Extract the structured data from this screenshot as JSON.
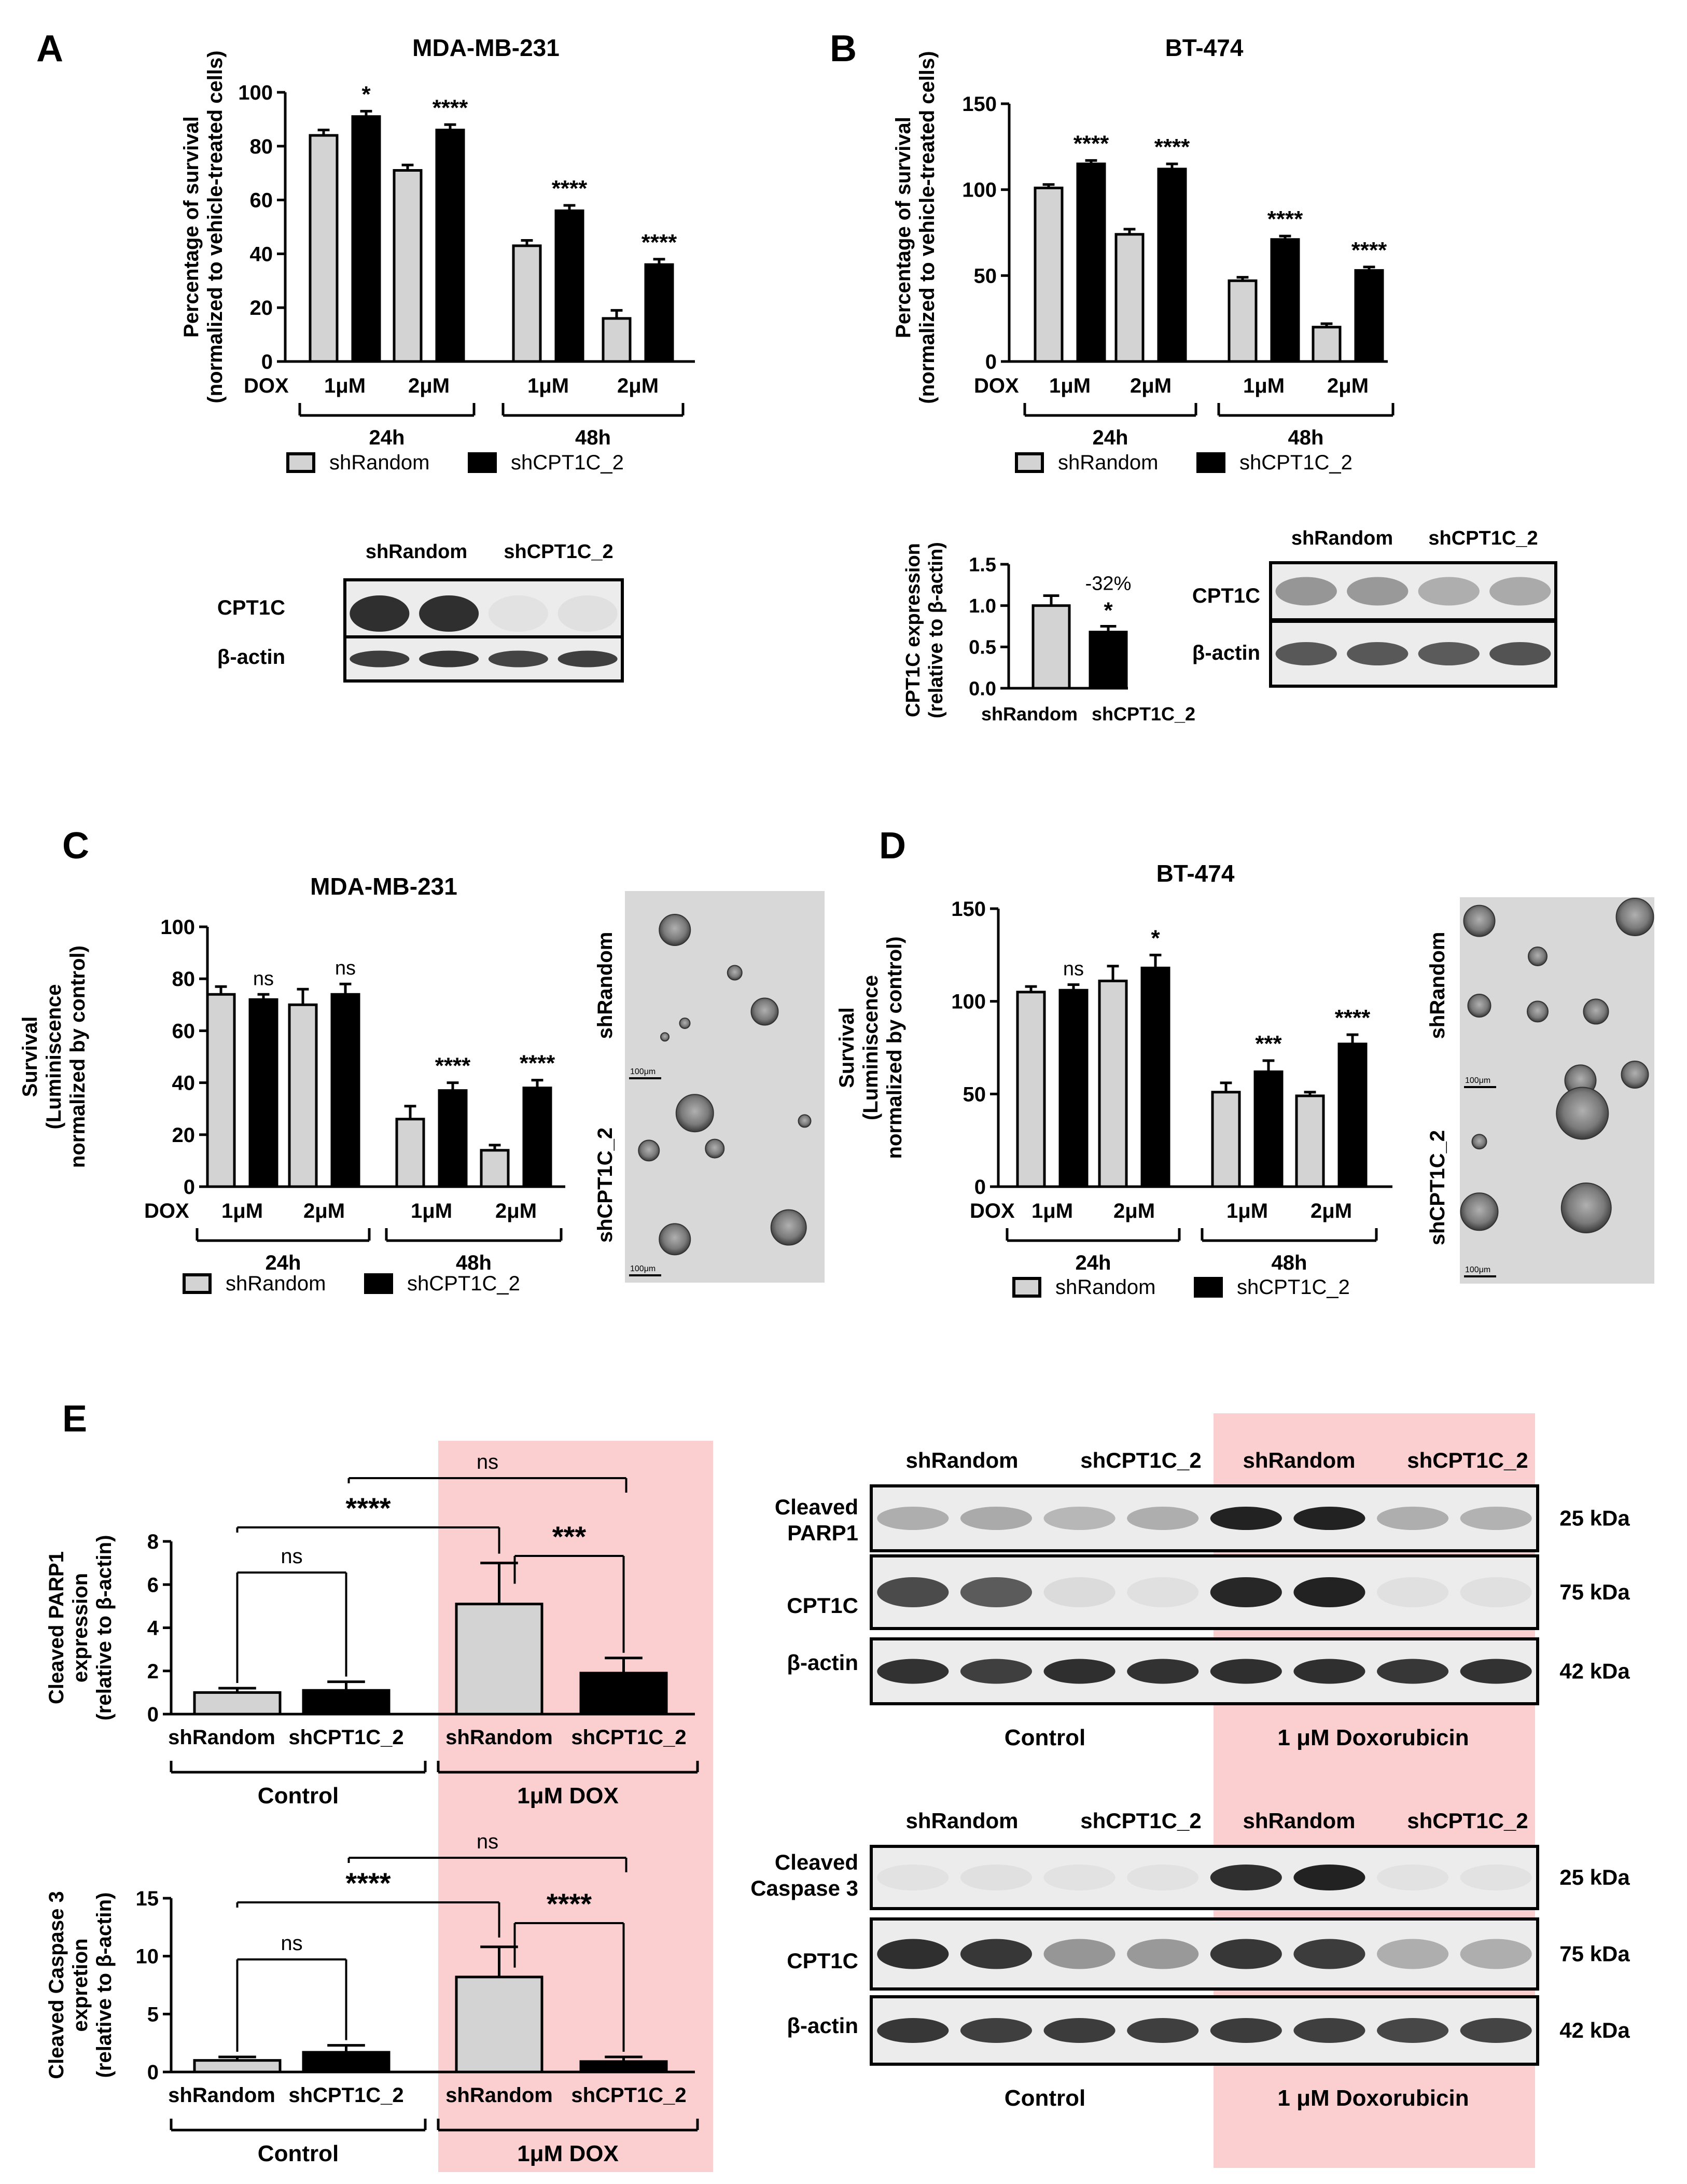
{
  "colors": {
    "shRandom": "#d3d3d3",
    "shCPT1C_2": "#000000",
    "highlight": "#fbcfcf",
    "blot_bg": "#ececec",
    "band": "#1e1e1e"
  },
  "legend": {
    "shRandom": "shRandom",
    "shCPT1C_2": "shCPT1C_2"
  },
  "panels": {
    "A": {
      "letter": "A",
      "title": "MDA-MB-231"
    },
    "B": {
      "letter": "B",
      "title": "BT-474"
    },
    "C": {
      "letter": "C",
      "title": "MDA-MB-231"
    },
    "D": {
      "letter": "D",
      "title": "BT-474"
    },
    "E": {
      "letter": "E"
    }
  },
  "dose_axis": {
    "dox": "DOX",
    "doses": [
      "1μM",
      "2μM",
      "1μM",
      "2μM"
    ],
    "times": [
      "24h",
      "48h"
    ]
  },
  "ylabels": {
    "survival": [
      "Percentage of survival",
      "(normalized to vehicle-treated cells)"
    ],
    "luminescence": [
      "Survival",
      "(Luminiscence",
      "normalized by control)"
    ],
    "cpt1c_expr": [
      "CPT1C expression",
      "(relative to β-actin)"
    ],
    "parp1_expr": [
      "Cleaved PARP1",
      "expression",
      "(relative to β-actin)"
    ],
    "casp3_expr": [
      "Cleaved Caspase 3",
      "expretion",
      "(relative to β-actin)"
    ]
  },
  "micrographs": {
    "top_label": "shRandom",
    "bottom_label": "shCPT1C_2",
    "scale_bar": "100μm"
  },
  "blots": {
    "A": {
      "headers": [
        "shRandom",
        "shCPT1C_2"
      ],
      "rows": [
        "CPT1C",
        "β-actin"
      ]
    },
    "B": {
      "headers": [
        "shRandom",
        "shCPT1C_2"
      ],
      "rows": [
        "CPT1C",
        "β-actin"
      ]
    },
    "E_parp": {
      "headers": [
        "shRandom",
        "shCPT1C_2",
        "shRandom",
        "shCPT1C_2"
      ],
      "rows": [
        "Cleaved\nPARP1",
        "CPT1C",
        "β-actin"
      ],
      "kda": [
        "25 kDa",
        "75 kDa",
        "42 kDa"
      ],
      "groups": [
        "Control",
        "1 μM Doxorubicin"
      ]
    },
    "E_casp": {
      "headers": [
        "shRandom",
        "shCPT1C_2",
        "shRandom",
        "shCPT1C_2"
      ],
      "rows": [
        "Cleaved\nCaspase 3",
        "CPT1C",
        "β-actin"
      ],
      "kda": [
        "25 kDa",
        "75 kDa",
        "42 kDa"
      ],
      "groups": [
        "Control",
        "1 μM Doxorubicin"
      ]
    }
  },
  "chart_data": [
    {
      "id": "A_survival",
      "type": "bar",
      "title": "MDA-MB-231",
      "ylabel": "Percentage of survival (normalized to vehicle-treated cells)",
      "categories": [
        "24h 1μM",
        "24h 2μM",
        "48h 1μM",
        "48h 2μM"
      ],
      "series": [
        {
          "name": "shRandom",
          "values": [
            84,
            71,
            43,
            16
          ],
          "errors": [
            2,
            2,
            2,
            3
          ]
        },
        {
          "name": "shCPT1C_2",
          "values": [
            91,
            86,
            56,
            36
          ],
          "errors": [
            2,
            2,
            2,
            2
          ]
        }
      ],
      "significance": [
        "*",
        "****",
        "****",
        "****"
      ],
      "ylim": [
        0,
        100
      ],
      "yticks": [
        0,
        20,
        40,
        60,
        80,
        100
      ]
    },
    {
      "id": "B_survival",
      "type": "bar",
      "title": "BT-474",
      "ylabel": "Percentage of survival (normalized to vehicle-treated cells)",
      "categories": [
        "24h 1μM",
        "24h 2μM",
        "48h 1μM",
        "48h 2μM"
      ],
      "series": [
        {
          "name": "shRandom",
          "values": [
            101,
            74,
            47,
            20
          ],
          "errors": [
            2,
            3,
            2,
            2
          ]
        },
        {
          "name": "shCPT1C_2",
          "values": [
            115,
            112,
            71,
            53
          ],
          "errors": [
            2,
            3,
            2,
            2
          ]
        }
      ],
      "significance": [
        "****",
        "****",
        "****",
        "****"
      ],
      "ylim": [
        0,
        150
      ],
      "yticks": [
        0,
        50,
        100,
        150
      ]
    },
    {
      "id": "B_expression",
      "type": "bar",
      "ylabel": "CPT1C expression (relative to β-actin)",
      "categories": [
        "shRandom",
        "shCPT1C_2"
      ],
      "values": [
        1.0,
        0.68
      ],
      "errors": [
        0.12,
        0.07
      ],
      "annotation": "-32%",
      "significance": "*",
      "ylim": [
        0,
        1.5
      ],
      "yticks": [
        "0.0",
        "0.5",
        "1.0",
        "1.5"
      ]
    },
    {
      "id": "C_survival",
      "type": "bar",
      "title": "MDA-MB-231",
      "ylabel": "Survival (Luminiscence normalized by control)",
      "categories": [
        "24h 1μM",
        "24h 2μM",
        "48h 1μM",
        "48h 2μM"
      ],
      "series": [
        {
          "name": "shRandom",
          "values": [
            74,
            70,
            26,
            14
          ],
          "errors": [
            3,
            6,
            5,
            2
          ]
        },
        {
          "name": "shCPT1C_2",
          "values": [
            72,
            74,
            37,
            38
          ],
          "errors": [
            2,
            4,
            3,
            3
          ]
        }
      ],
      "significance": [
        "ns",
        "ns",
        "****",
        "****"
      ],
      "ylim": [
        0,
        100
      ],
      "yticks": [
        0,
        20,
        40,
        60,
        80,
        100
      ]
    },
    {
      "id": "D_survival",
      "type": "bar",
      "title": "BT-474",
      "ylabel": "Survival (Luminiscence normalized by control)",
      "categories": [
        "24h 1μM",
        "24h 2μM",
        "48h 1μM",
        "48h 2μM"
      ],
      "series": [
        {
          "name": "shRandom",
          "values": [
            105,
            111,
            51,
            49
          ],
          "errors": [
            3,
            8,
            5,
            2
          ]
        },
        {
          "name": "shCPT1C_2",
          "values": [
            106,
            118,
            62,
            77
          ],
          "errors": [
            3,
            7,
            6,
            5
          ]
        }
      ],
      "significance": [
        "ns",
        "*",
        "***",
        "****"
      ],
      "ylim": [
        0,
        150
      ],
      "yticks": [
        0,
        50,
        100,
        150
      ]
    },
    {
      "id": "E_parp1",
      "type": "bar",
      "ylabel": "Cleaved PARP1 expression (relative to β-actin)",
      "categories": [
        "shRandom",
        "shCPT1C_2",
        "shRandom",
        "shCPT1C_2"
      ],
      "groups": [
        "Control",
        "1μM DOX"
      ],
      "values": [
        1.0,
        1.1,
        5.1,
        1.9
      ],
      "errors": [
        0.2,
        0.4,
        1.9,
        0.7
      ],
      "comparisons": [
        "ns",
        "****",
        "***",
        "ns"
      ],
      "ylim": [
        0,
        8
      ],
      "yticks": [
        0,
        2,
        4,
        6,
        8
      ]
    },
    {
      "id": "E_casp3",
      "type": "bar",
      "ylabel": "Cleaved Caspase 3 expretion (relative to β-actin)",
      "categories": [
        "shRandom",
        "shCPT1C_2",
        "shRandom",
        "shCPT1C_2"
      ],
      "groups": [
        "Control",
        "1μM DOX"
      ],
      "values": [
        1.0,
        1.7,
        8.2,
        0.9
      ],
      "errors": [
        0.3,
        0.6,
        2.6,
        0.4
      ],
      "comparisons": [
        "ns",
        "****",
        "****",
        "ns"
      ],
      "ylim": [
        0,
        15
      ],
      "yticks": [
        0,
        5,
        10,
        15
      ]
    }
  ]
}
